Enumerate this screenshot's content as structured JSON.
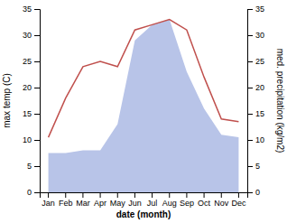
{
  "chart_data": {
    "type": "line",
    "xlabel": "date (month)",
    "ylabel": "max temp (C)",
    "y2label": "med. precipitation (kg/m2)",
    "categories": [
      "Jan",
      "Feb",
      "Mar",
      "Apr",
      "May",
      "Jun",
      "Jul",
      "Aug",
      "Sep",
      "Oct",
      "Nov",
      "Dec"
    ],
    "series": [
      {
        "type": "area",
        "axis": "y2",
        "color": "#b8c4e8",
        "values": [
          7.5,
          7.5,
          8.0,
          8.0,
          13.0,
          29.0,
          32.0,
          33.0,
          23.0,
          16.0,
          11.0,
          10.5
        ]
      },
      {
        "type": "line",
        "color": "#c0504d",
        "values": [
          10.5,
          18.0,
          24.0,
          25.0,
          24.0,
          31.0,
          32.0,
          33.0,
          31.0,
          22.0,
          14.0,
          13.5
        ]
      }
    ],
    "ylim": [
      0,
      35
    ],
    "yticks": [
      0,
      5,
      10,
      15,
      20,
      25,
      30,
      35
    ],
    "y2lim": [
      0,
      35
    ],
    "y2ticks": [
      0,
      5,
      10,
      15,
      20,
      25,
      30,
      35
    ],
    "grid": false
  }
}
